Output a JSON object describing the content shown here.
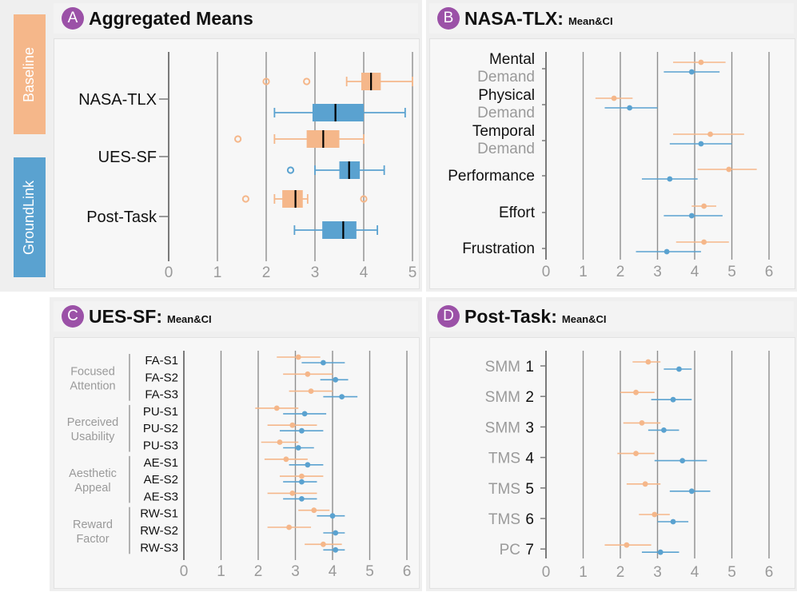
{
  "colors": {
    "baseline": "#f5b78a",
    "groundlink": "#5aa2d0",
    "badge": "#9b51a7"
  },
  "legend": {
    "baseline": "Baseline",
    "groundlink": "GroundLink"
  },
  "panels": {
    "a": {
      "letter": "A",
      "title": "Aggregated Means",
      "subtitle": ""
    },
    "b": {
      "letter": "B",
      "title": "NASA-TLX:",
      "subtitle": "Mean&CI"
    },
    "c": {
      "letter": "C",
      "title": "UES-SF:",
      "subtitle": "Mean&CI"
    },
    "d": {
      "letter": "D",
      "title": "Post-Task:",
      "subtitle": "Mean&CI"
    }
  },
  "chart_data": [
    {
      "id": "a",
      "type": "box",
      "title": "Aggregated Means",
      "xlim": [
        0,
        5
      ],
      "xticks": [
        0,
        1,
        2,
        3,
        4,
        5
      ],
      "groups": [
        "NASA-TLX",
        "UES-SF",
        "Post-Task"
      ],
      "series": [
        {
          "name": "Baseline",
          "boxes": [
            {
              "group": "NASA-TLX",
              "whisker": [
                3.65,
                5.0
              ],
              "q1": 3.95,
              "median": 4.15,
              "q3": 4.35,
              "outliers": [
                2.0,
                2.83
              ]
            },
            {
              "group": "UES-SF",
              "whisker": [
                2.17,
                4.0
              ],
              "q1": 2.83,
              "median": 3.17,
              "q3": 3.5,
              "outliers": [
                1.42
              ]
            },
            {
              "group": "Post-Task",
              "whisker": [
                2.17,
                2.85
              ],
              "q1": 2.33,
              "median": 2.6,
              "q3": 2.75,
              "outliers": [
                1.58,
                4.0
              ]
            }
          ]
        },
        {
          "name": "GroundLink",
          "boxes": [
            {
              "group": "NASA-TLX",
              "whisker": [
                2.17,
                4.85
              ],
              "q1": 2.95,
              "median": 3.42,
              "q3": 4.0,
              "outliers": []
            },
            {
              "group": "UES-SF",
              "whisker": [
                3.0,
                4.42
              ],
              "q1": 3.5,
              "median": 3.7,
              "q3": 3.92,
              "outliers": [
                2.5
              ]
            },
            {
              "group": "Post-Task",
              "whisker": [
                2.58,
                4.28
              ],
              "q1": 3.15,
              "median": 3.58,
              "q3": 3.85,
              "outliers": []
            }
          ]
        }
      ]
    },
    {
      "id": "b",
      "type": "dot-ci",
      "title": "NASA-TLX: Mean&CI",
      "xlim": [
        0,
        6
      ],
      "xticks": [
        0,
        1,
        2,
        3,
        4,
        5,
        6
      ],
      "rows": [
        {
          "line1": "Mental",
          "line2": "Demand"
        },
        {
          "line1": "Physical",
          "line2": "Demand"
        },
        {
          "line1": "Temporal",
          "line2": "Demand"
        },
        {
          "line1": "Performance",
          "line2": ""
        },
        {
          "line1": "Effort",
          "line2": ""
        },
        {
          "line1": "Frustration",
          "line2": ""
        }
      ],
      "series": [
        {
          "name": "Baseline",
          "mean": [
            4.17,
            1.83,
            4.42,
            4.92,
            4.25,
            4.25
          ],
          "lo": [
            3.42,
            1.33,
            3.42,
            4.08,
            3.92,
            3.5
          ],
          "hi": [
            4.83,
            2.33,
            5.33,
            5.67,
            4.58,
            4.92
          ]
        },
        {
          "name": "GroundLink",
          "mean": [
            3.92,
            2.25,
            4.17,
            3.33,
            3.92,
            3.25
          ],
          "lo": [
            3.17,
            1.58,
            3.33,
            2.58,
            3.17,
            2.42
          ],
          "hi": [
            4.67,
            3.0,
            5.0,
            4.08,
            4.75,
            4.17
          ]
        }
      ]
    },
    {
      "id": "c",
      "type": "dot-ci",
      "title": "UES-SF: Mean&CI",
      "xlim": [
        0,
        6
      ],
      "xticks": [
        0,
        1,
        2,
        3,
        4,
        5,
        6
      ],
      "groups": [
        {
          "line1": "Focused",
          "line2": "Attention",
          "items": [
            "FA-S1",
            "FA-S2",
            "FA-S3"
          ]
        },
        {
          "line1": "Perceived",
          "line2": "Usability",
          "items": [
            "PU-S1",
            "PU-S2",
            "PU-S3"
          ]
        },
        {
          "line1": "Aesthetic",
          "line2": "Appeal",
          "items": [
            "AE-S1",
            "AE-S2",
            "AE-S3"
          ]
        },
        {
          "line1": "Reward",
          "line2": "Factor",
          "items": [
            "RW-S1",
            "RW-S2",
            "RW-S3"
          ]
        }
      ],
      "series": [
        {
          "name": "Baseline",
          "mean": [
            3.08,
            3.33,
            3.42,
            2.5,
            2.92,
            2.58,
            2.75,
            3.17,
            2.92,
            3.5,
            2.83,
            3.75
          ],
          "lo": [
            2.5,
            2.67,
            2.83,
            1.92,
            2.25,
            2.08,
            2.17,
            2.58,
            2.25,
            3.08,
            2.25,
            3.25
          ],
          "hi": [
            3.67,
            4.0,
            4.0,
            3.08,
            3.58,
            3.08,
            3.33,
            3.75,
            3.58,
            3.92,
            3.42,
            4.25
          ]
        },
        {
          "name": "GroundLink",
          "mean": [
            3.75,
            4.08,
            4.25,
            3.25,
            3.17,
            3.08,
            3.33,
            3.17,
            3.17,
            4.0,
            4.08,
            4.08
          ],
          "lo": [
            3.17,
            3.67,
            3.75,
            2.67,
            2.58,
            2.67,
            2.83,
            2.67,
            2.67,
            3.58,
            3.75,
            3.75
          ],
          "hi": [
            4.33,
            4.42,
            4.67,
            3.83,
            3.75,
            3.5,
            3.75,
            3.58,
            3.58,
            4.33,
            4.33,
            4.33
          ]
        }
      ]
    },
    {
      "id": "d",
      "type": "dot-ci",
      "title": "Post-Task: Mean&CI",
      "xlim": [
        0,
        6
      ],
      "xticks": [
        0,
        1,
        2,
        3,
        4,
        5,
        6
      ],
      "rows": [
        {
          "prefix": "SMM",
          "num": "1"
        },
        {
          "prefix": "SMM",
          "num": "2"
        },
        {
          "prefix": "SMM",
          "num": "3"
        },
        {
          "prefix": "TMS",
          "num": "4"
        },
        {
          "prefix": "TMS",
          "num": "5"
        },
        {
          "prefix": "TMS",
          "num": "6"
        },
        {
          "prefix": "PC",
          "num": "7"
        }
      ],
      "series": [
        {
          "name": "Baseline",
          "mean": [
            2.75,
            2.42,
            2.58,
            2.42,
            2.67,
            2.92,
            2.17
          ],
          "lo": [
            2.33,
            2.0,
            2.08,
            1.92,
            2.17,
            2.5,
            1.58
          ],
          "hi": [
            3.08,
            2.92,
            3.08,
            2.92,
            3.08,
            3.33,
            2.83
          ]
        },
        {
          "name": "GroundLink",
          "mean": [
            3.58,
            3.42,
            3.17,
            3.67,
            3.92,
            3.42,
            3.08
          ],
          "lo": [
            3.17,
            2.83,
            2.75,
            2.92,
            3.33,
            3.0,
            2.58
          ],
          "hi": [
            3.92,
            3.92,
            3.58,
            4.33,
            4.42,
            3.83,
            3.58
          ]
        }
      ]
    }
  ]
}
